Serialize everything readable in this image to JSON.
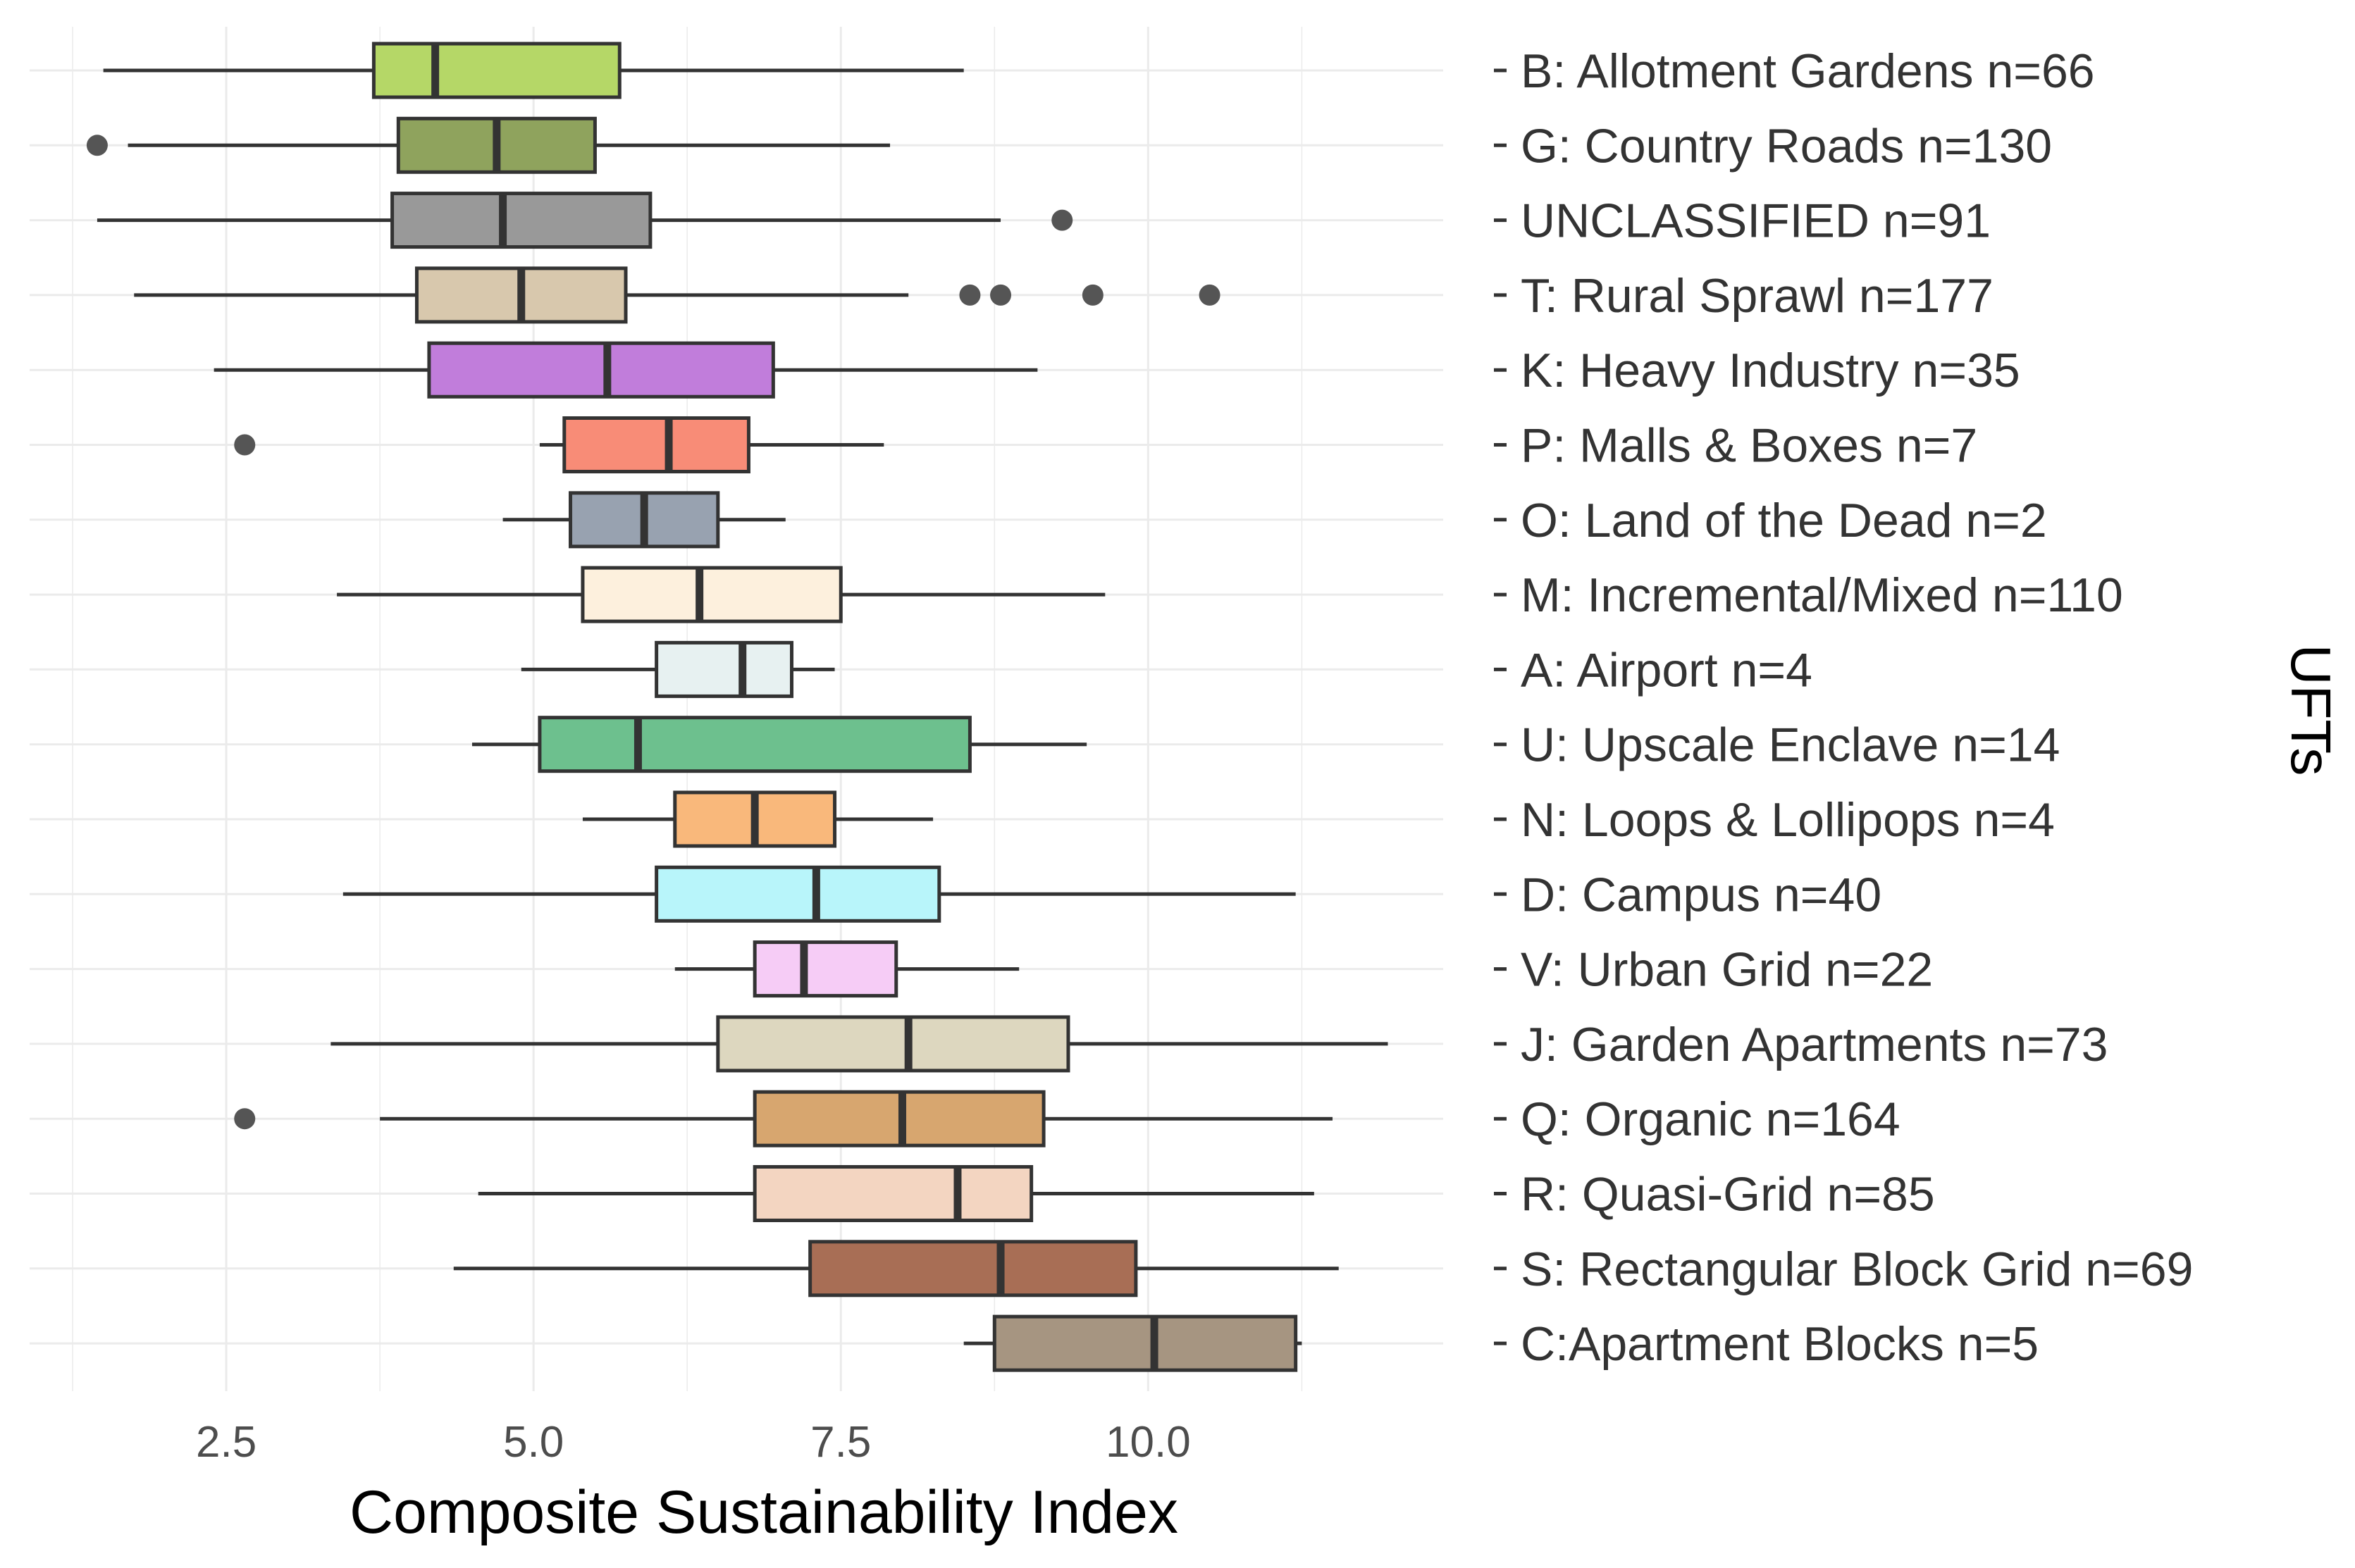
{
  "chart_data": {
    "type": "boxplot",
    "orientation": "horizontal",
    "title": "",
    "xlabel": "Composite Sustainability Index",
    "ylabel": "UFTs",
    "xlim": [
      0.9,
      12.4
    ],
    "xticks": [
      2.5,
      5.0,
      7.5,
      10.0
    ],
    "xtick_labels": [
      "2.5",
      "5.0",
      "7.5",
      "10.0"
    ],
    "grid": true,
    "ylabel_side": "right",
    "series": [
      {
        "label": "B: Allotment Gardens n=66",
        "color": "#b5d767",
        "min": 1.5,
        "q1": 3.7,
        "median": 4.2,
        "q3": 5.7,
        "max": 8.5,
        "outliers": []
      },
      {
        "label": "G: Country Roads n=130",
        "color": "#8fa35d",
        "min": 1.7,
        "q1": 3.9,
        "median": 4.7,
        "q3": 5.5,
        "max": 7.9,
        "outliers": [
          1.45
        ]
      },
      {
        "label": "UNCLASSIFIED n=91",
        "color": "#999999",
        "min": 1.45,
        "q1": 3.85,
        "median": 4.75,
        "q3": 5.95,
        "max": 8.8,
        "outliers": [
          9.3
        ]
      },
      {
        "label": "T: Rural Sprawl n=177",
        "color": "#d8c8ad",
        "min": 1.75,
        "q1": 4.05,
        "median": 4.9,
        "q3": 5.75,
        "max": 8.05,
        "outliers": [
          8.55,
          8.8,
          9.55,
          10.5
        ]
      },
      {
        "label": "K: Heavy Industry n=35",
        "color": "#c17ddb",
        "min": 2.4,
        "q1": 4.15,
        "median": 5.6,
        "q3": 6.95,
        "max": 9.1,
        "outliers": []
      },
      {
        "label": "P: Malls & Boxes n=7",
        "color": "#f88c77",
        "min": 5.05,
        "q1": 5.25,
        "median": 6.1,
        "q3": 6.75,
        "max": 7.85,
        "outliers": [
          2.65
        ]
      },
      {
        "label": "O: Land of the Dead n=2",
        "color": "#98a2b0",
        "min": 4.75,
        "q1": 5.3,
        "median": 5.9,
        "q3": 6.5,
        "max": 7.05,
        "outliers": []
      },
      {
        "label": "M: Incremental/Mixed n=110",
        "color": "#fdf0dd",
        "min": 3.4,
        "q1": 5.4,
        "median": 6.35,
        "q3": 7.5,
        "max": 9.65,
        "outliers": []
      },
      {
        "label": "A: Airport n=4",
        "color": "#e7f1f1",
        "min": 4.9,
        "q1": 6.0,
        "median": 6.7,
        "q3": 7.1,
        "max": 7.45,
        "outliers": []
      },
      {
        "label": "U: Upscale Enclave n=14",
        "color": "#6dc08e",
        "min": 4.5,
        "q1": 5.05,
        "median": 5.85,
        "q3": 8.55,
        "max": 9.5,
        "outliers": []
      },
      {
        "label": "N: Loops & Lollipops n=4",
        "color": "#f9b87b",
        "min": 5.4,
        "q1": 6.15,
        "median": 6.8,
        "q3": 7.45,
        "max": 8.25,
        "outliers": []
      },
      {
        "label": "D: Campus n=40",
        "color": "#b8f5fa",
        "min": 3.45,
        "q1": 6.0,
        "median": 7.3,
        "q3": 8.3,
        "max": 11.2,
        "outliers": []
      },
      {
        "label": "V: Urban Grid n=22",
        "color": "#f6ccf6",
        "min": 6.15,
        "q1": 6.8,
        "median": 7.2,
        "q3": 7.95,
        "max": 8.95,
        "outliers": []
      },
      {
        "label": "J: Garden Apartments n=73",
        "color": "#ddd7bf",
        "min": 3.35,
        "q1": 6.5,
        "median": 8.05,
        "q3": 9.35,
        "max": 11.95,
        "outliers": []
      },
      {
        "label": "Q: Organic n=164",
        "color": "#d7a66f",
        "min": 3.75,
        "q1": 6.8,
        "median": 8.0,
        "q3": 9.15,
        "max": 11.5,
        "outliers": [
          2.65
        ]
      },
      {
        "label": "R: Quasi-Grid n=85",
        "color": "#f3d5c1",
        "min": 4.55,
        "q1": 6.8,
        "median": 8.45,
        "q3": 9.05,
        "max": 11.35,
        "outliers": []
      },
      {
        "label": "S: Rectangular Block Grid n=69",
        "color": "#a86e55",
        "min": 4.35,
        "q1": 7.25,
        "median": 8.8,
        "q3": 9.9,
        "max": 11.55,
        "outliers": []
      },
      {
        "label": "C:Apartment Blocks n=5",
        "color": "#a69581",
        "min": 8.5,
        "q1": 8.75,
        "median": 10.05,
        "q3": 11.2,
        "max": 11.25,
        "outliers": []
      }
    ]
  }
}
